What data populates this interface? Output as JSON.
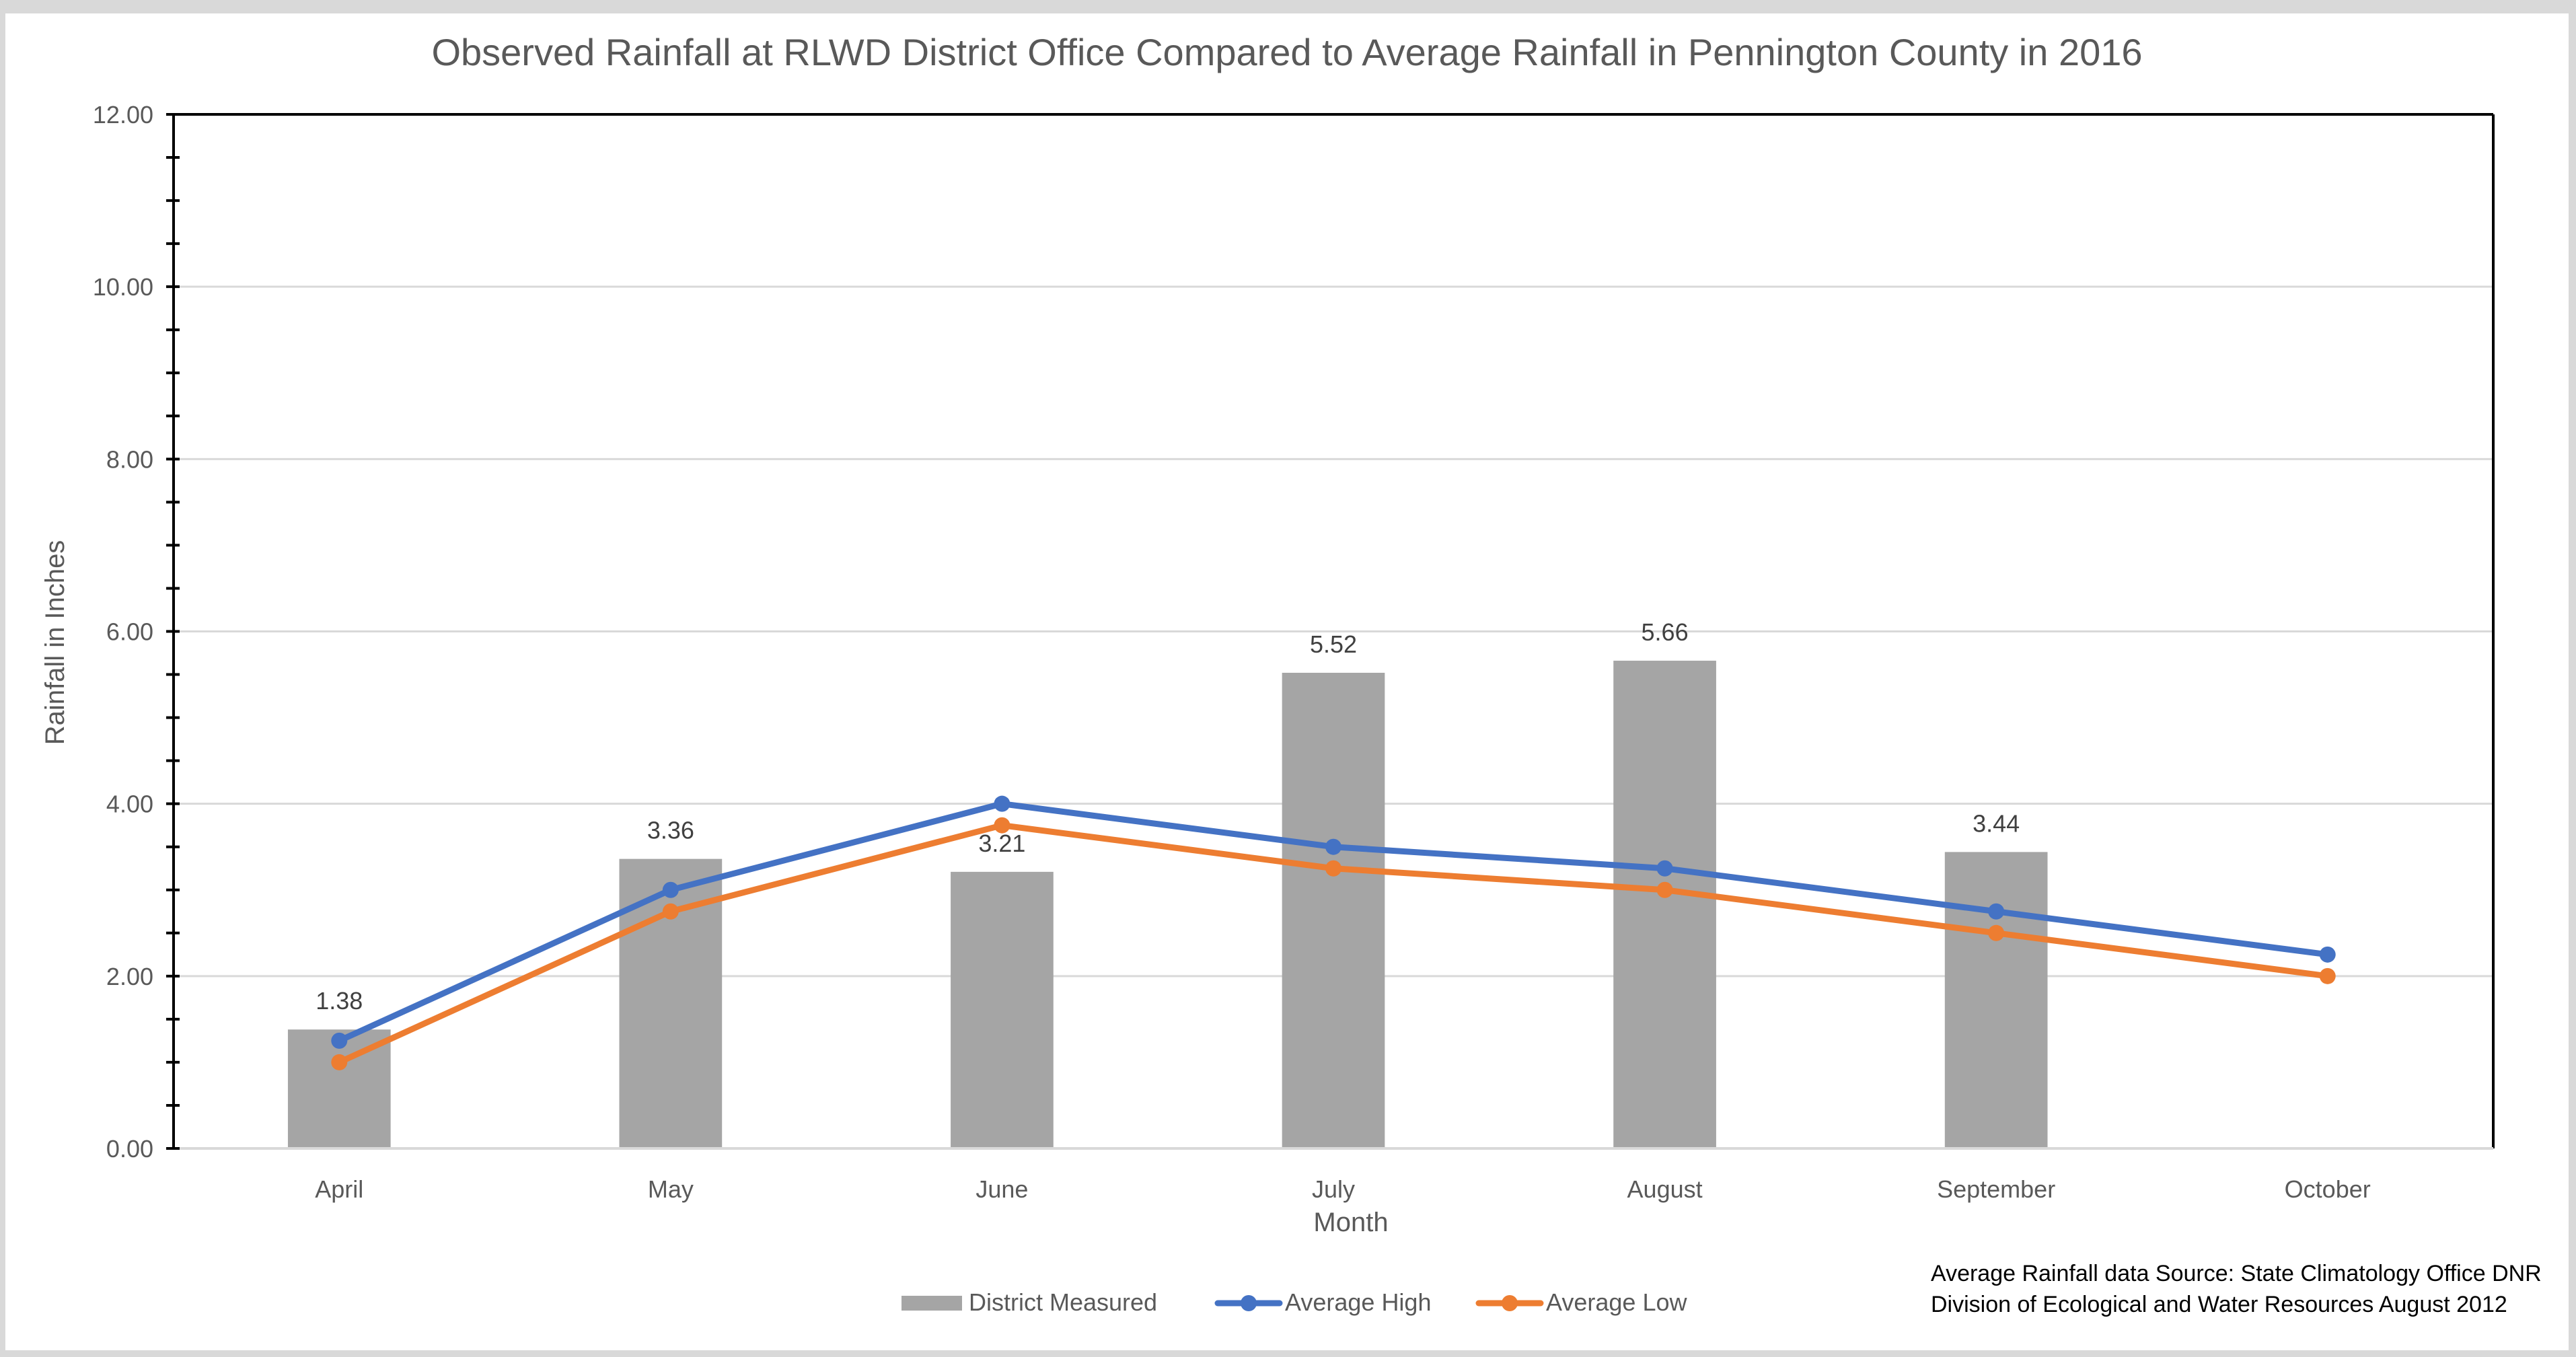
{
  "chart_data": {
    "type": "bar",
    "title": "Observed Rainfall at RLWD District Office Compared to Average Rainfall in Pennington County in 2016",
    "xlabel": "Month",
    "ylabel": "Rainfall in Inches",
    "ylim": [
      0,
      12
    ],
    "y_major_ticks": [
      0,
      2,
      4,
      6,
      8,
      10,
      12
    ],
    "y_tick_labels": [
      "0.00",
      "2.00",
      "4.00",
      "6.00",
      "8.00",
      "10.00",
      "12.00"
    ],
    "y_minor_step": 0.5,
    "grid": true,
    "categories": [
      "April",
      "May",
      "June",
      "July",
      "August",
      "September",
      "October"
    ],
    "series": [
      {
        "name": "District Measured",
        "type": "bar",
        "color": "#a5a5a5",
        "values": [
          1.38,
          3.36,
          3.21,
          5.52,
          5.66,
          3.44,
          null
        ],
        "data_labels": [
          "1.38",
          "3.36",
          "3.21",
          "5.52",
          "5.66",
          "3.44",
          ""
        ]
      },
      {
        "name": "Average High",
        "type": "line",
        "color": "#4472c4",
        "values": [
          1.25,
          3.0,
          4.0,
          3.5,
          3.25,
          2.75,
          2.25
        ]
      },
      {
        "name": "Average Low",
        "type": "line",
        "color": "#ed7d31",
        "values": [
          1.0,
          2.75,
          3.75,
          3.25,
          3.0,
          2.5,
          2.0
        ]
      }
    ],
    "legend": {
      "placement": "bottom",
      "entries": [
        "District Measured",
        "Average High",
        "Average Low"
      ]
    },
    "annotation": {
      "placement": "bottom-right",
      "lines": [
        "Average Rainfall data Source: State Climatology Office DNR",
        "Division of Ecological and Water Resources August 2012"
      ]
    }
  }
}
